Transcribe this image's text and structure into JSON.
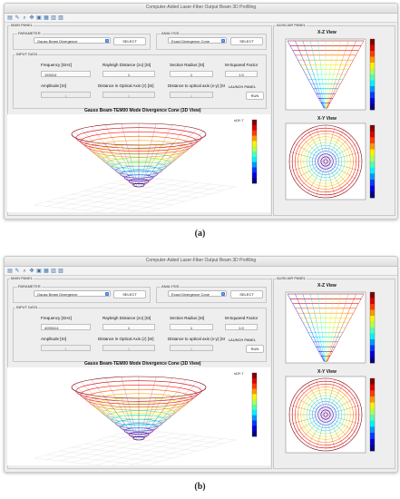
{
  "window": {
    "title": "Computer-Aided Laser-Fiber Output Beam 3D Profiling"
  },
  "toolbar_icons": [
    "new-file-icon",
    "edit-icon",
    "zoom-icon",
    "pan-icon",
    "save-icon",
    "print-icon",
    "export-icon",
    "delete-icon"
  ],
  "main_panel": {
    "label": "MAIN PANEL"
  },
  "parameter": {
    "label": "PARAMETER",
    "selected": "Gauss Beam Divergence",
    "select_label": "SELECT"
  },
  "analysis": {
    "label": "ANALYSIS",
    "selected": "Exact Divergence Cone",
    "select_label": "SELECT"
  },
  "input_data": {
    "label": "INPUT DATA",
    "frequency_label": "Frequency [GHz]",
    "rayleigh_label": "Rayleigh Distance (zo) [SI]",
    "section_label": "Section Radius [SI]",
    "msquared_label": "M-Squared Factor",
    "amplitude_label": "Amplitude [SI]",
    "optical_axis_label": "Distance in Optical Axis (z) [SI]",
    "distance_axis_label": "Distance to optical axis (x-y) [SI]",
    "launch_label": "LAUNCH PANEL",
    "run_label": "RUN",
    "rayleigh_value": "1",
    "section_value": "1",
    "msquared_value": "1.0",
    "amplitude_value": "1",
    "optical_axis_value": "1",
    "distance_axis_value": "1"
  },
  "screens": [
    {
      "frequency_value": "193414"
    },
    {
      "frequency_value": "4093414"
    }
  ],
  "plot3d": {
    "title": "Gauss Beam-TEM00 Mode Divergence Cone (3D View)",
    "exp_label": "x10^-7"
  },
  "aux_panel": {
    "label": "AUXILIAR PANEL",
    "xz_title": "X-Z View",
    "xy_title": "X-Y View"
  },
  "captions": [
    "(a)",
    "(b)"
  ]
}
